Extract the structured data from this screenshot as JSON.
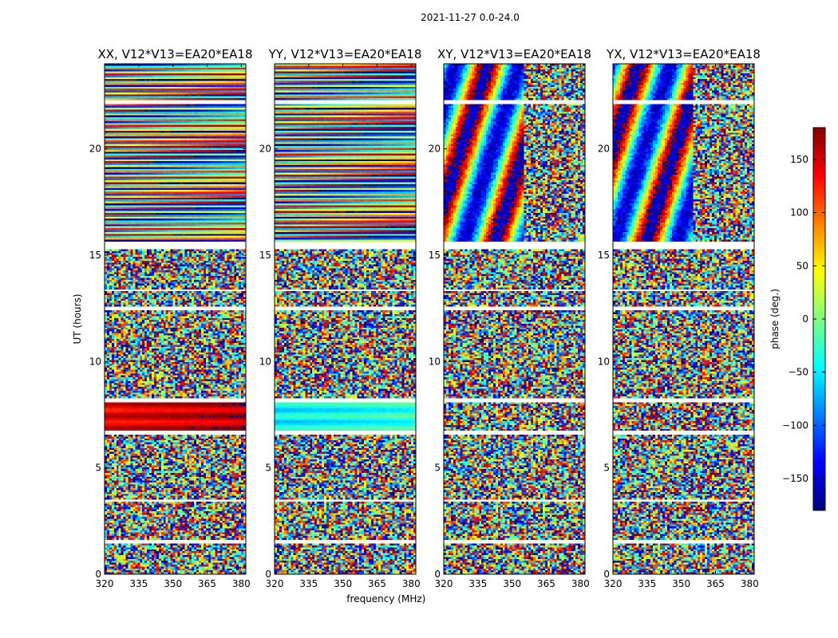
{
  "figure_title": "2021-11-27 0.0-24.0",
  "colors": {
    "white": "#ffffff",
    "black": "#000000",
    "colormap_stops": [
      "#00007f",
      "#0000ff",
      "#007fff",
      "#00ffff",
      "#7fff7f",
      "#ffff00",
      "#ff7f00",
      "#ff0000",
      "#7f0000"
    ]
  },
  "chart_data": [
    {
      "type": "heatmap",
      "title": "XX, V12*V13=EA20*EA18",
      "xlabel": "",
      "ylabel": "UT (hours)",
      "xlim": [
        320,
        382
      ],
      "ylim": [
        0,
        24
      ],
      "x_ticks": [
        "320",
        "335",
        "350",
        "365",
        "380"
      ],
      "y_ticks": [
        "0",
        "5",
        "10",
        "15",
        "20"
      ],
      "value": "phase (deg.)",
      "clim": [
        -180,
        180
      ]
    },
    {
      "type": "heatmap",
      "title": "YY, V12*V13=EA20*EA18",
      "xlabel": "frequency (MHz)",
      "ylabel": "",
      "xlim": [
        320,
        382
      ],
      "ylim": [
        0,
        24
      ],
      "x_ticks": [
        "320",
        "335",
        "350",
        "365",
        "380"
      ],
      "y_ticks": [
        "0",
        "5",
        "10",
        "15",
        "20"
      ],
      "value": "phase (deg.)",
      "clim": [
        -180,
        180
      ]
    },
    {
      "type": "heatmap",
      "title": "XY, V12*V13=EA20*EA18",
      "xlabel": "",
      "ylabel": "",
      "xlim": [
        320,
        382
      ],
      "ylim": [
        0,
        24
      ],
      "x_ticks": [
        "320",
        "335",
        "350",
        "365",
        "380"
      ],
      "y_ticks": [
        "0",
        "5",
        "10",
        "15",
        "20"
      ],
      "value": "phase (deg.)",
      "clim": [
        -180,
        180
      ]
    },
    {
      "type": "heatmap",
      "title": "YX, V12*V13=EA20*EA18",
      "xlabel": "",
      "ylabel": "",
      "xlim": [
        320,
        382
      ],
      "ylim": [
        0,
        24
      ],
      "x_ticks": [
        "320",
        "335",
        "350",
        "365",
        "380"
      ],
      "y_ticks": [
        "0",
        "5",
        "10",
        "15",
        "20"
      ],
      "value": "phase (deg.)",
      "clim": [
        -180,
        180
      ]
    }
  ],
  "colorbar": {
    "label": "phase (deg.)",
    "range": [
      -180,
      180
    ],
    "ticks": [
      "150",
      "100",
      "50",
      "0",
      "−50",
      "−100",
      "−150"
    ],
    "tick_values": [
      150,
      100,
      50,
      0,
      -50,
      -100,
      -150
    ]
  }
}
